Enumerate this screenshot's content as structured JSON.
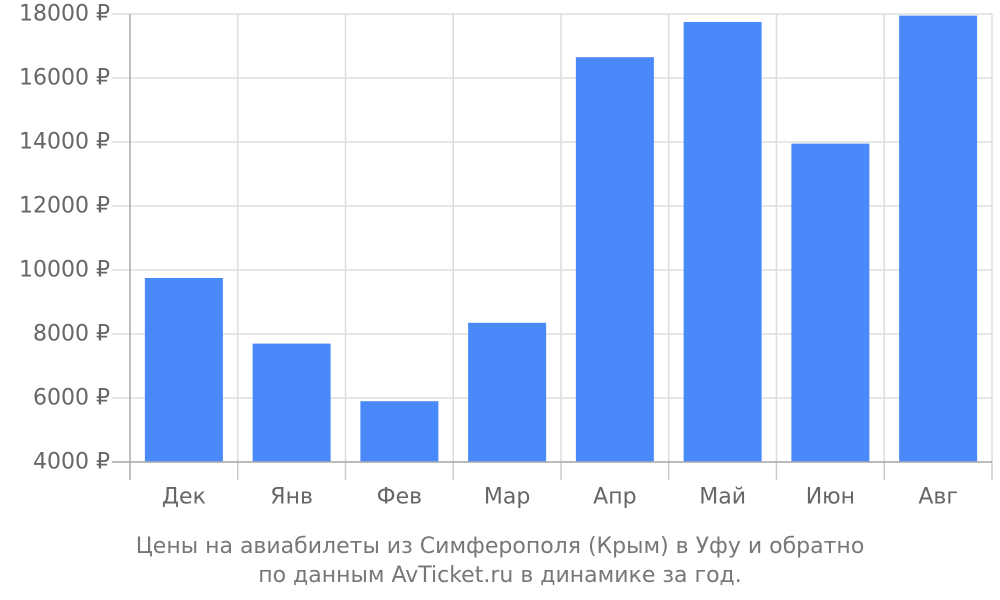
{
  "chart_data": {
    "type": "bar",
    "categories": [
      "Дек",
      "Янв",
      "Фев",
      "Мар",
      "Апр",
      "Май",
      "Июн",
      "Авг"
    ],
    "values": [
      9750,
      7700,
      5900,
      8350,
      16650,
      17750,
      13950,
      17950
    ],
    "y_ticks": [
      "4000 ₽",
      "6000 ₽",
      "8000 ₽",
      "10000 ₽",
      "12000 ₽",
      "14000 ₽",
      "16000 ₽",
      "18000 ₽"
    ],
    "ylim": [
      4000,
      18000
    ],
    "grid": true,
    "bar_color": "#4a89f9",
    "title": "Цены на авиабилеты из Симферополя (Крым) в Уфу и обратно",
    "subtitle": "по данным AvTicket.ru в динамике за год."
  }
}
